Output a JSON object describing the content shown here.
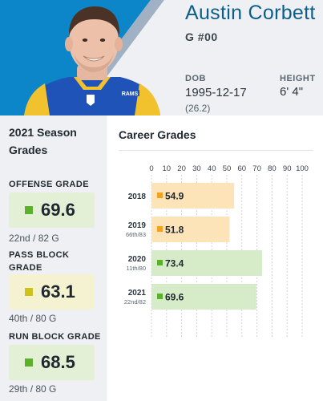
{
  "player": {
    "name": "Austin Corbett",
    "position_number": "G #00",
    "dob_label": "DOB",
    "dob": "1995-12-17",
    "age": "(26.2)",
    "height_label": "HEIGHT",
    "height": "6' 4\""
  },
  "season": {
    "title": "2021 Season Grades",
    "grades": [
      {
        "label": "OFFENSE GRADE",
        "value": "69.6",
        "rank": "22nd / 82 G",
        "color": "#5bb22a",
        "bg": "#e3f0d6"
      },
      {
        "label": "PASS BLOCK GRADE",
        "value": "63.1",
        "rank": "40th / 80 G",
        "color": "#cfc31b",
        "bg": "#f5f2d2"
      },
      {
        "label": "RUN BLOCK GRADE",
        "value": "68.5",
        "rank": "29th / 80 G",
        "color": "#5bb22a",
        "bg": "#e3f0d6"
      }
    ]
  },
  "career": {
    "title": "Career Grades"
  },
  "chart_data": {
    "type": "bar",
    "orientation": "horizontal",
    "xlim": [
      0,
      100
    ],
    "xticks": [
      0,
      10,
      20,
      30,
      40,
      50,
      60,
      70,
      80,
      90,
      100
    ],
    "grid": true,
    "rows": [
      {
        "year": "2018",
        "rank": "",
        "value": 54.9,
        "label": "54.9",
        "marker": "#f4a11d",
        "fill": "#fde3b8"
      },
      {
        "year": "2019",
        "rank": "66th/83",
        "value": 51.8,
        "label": "51.8",
        "marker": "#f4a11d",
        "fill": "#fde3b8"
      },
      {
        "year": "2020",
        "rank": "11th/80",
        "value": 73.4,
        "label": "73.4",
        "marker": "#5bb22a",
        "fill": "#d6ecc8"
      },
      {
        "year": "2021",
        "rank": "22nd/82",
        "value": 69.6,
        "label": "69.6",
        "marker": "#5bb22a",
        "fill": "#d6ecc8"
      }
    ]
  },
  "colors": {
    "brand_blue": "#0e5e8a",
    "rams_blue": "#1f53b7",
    "rams_gold": "#f2c12e",
    "header_bg": "#eef0f3"
  }
}
